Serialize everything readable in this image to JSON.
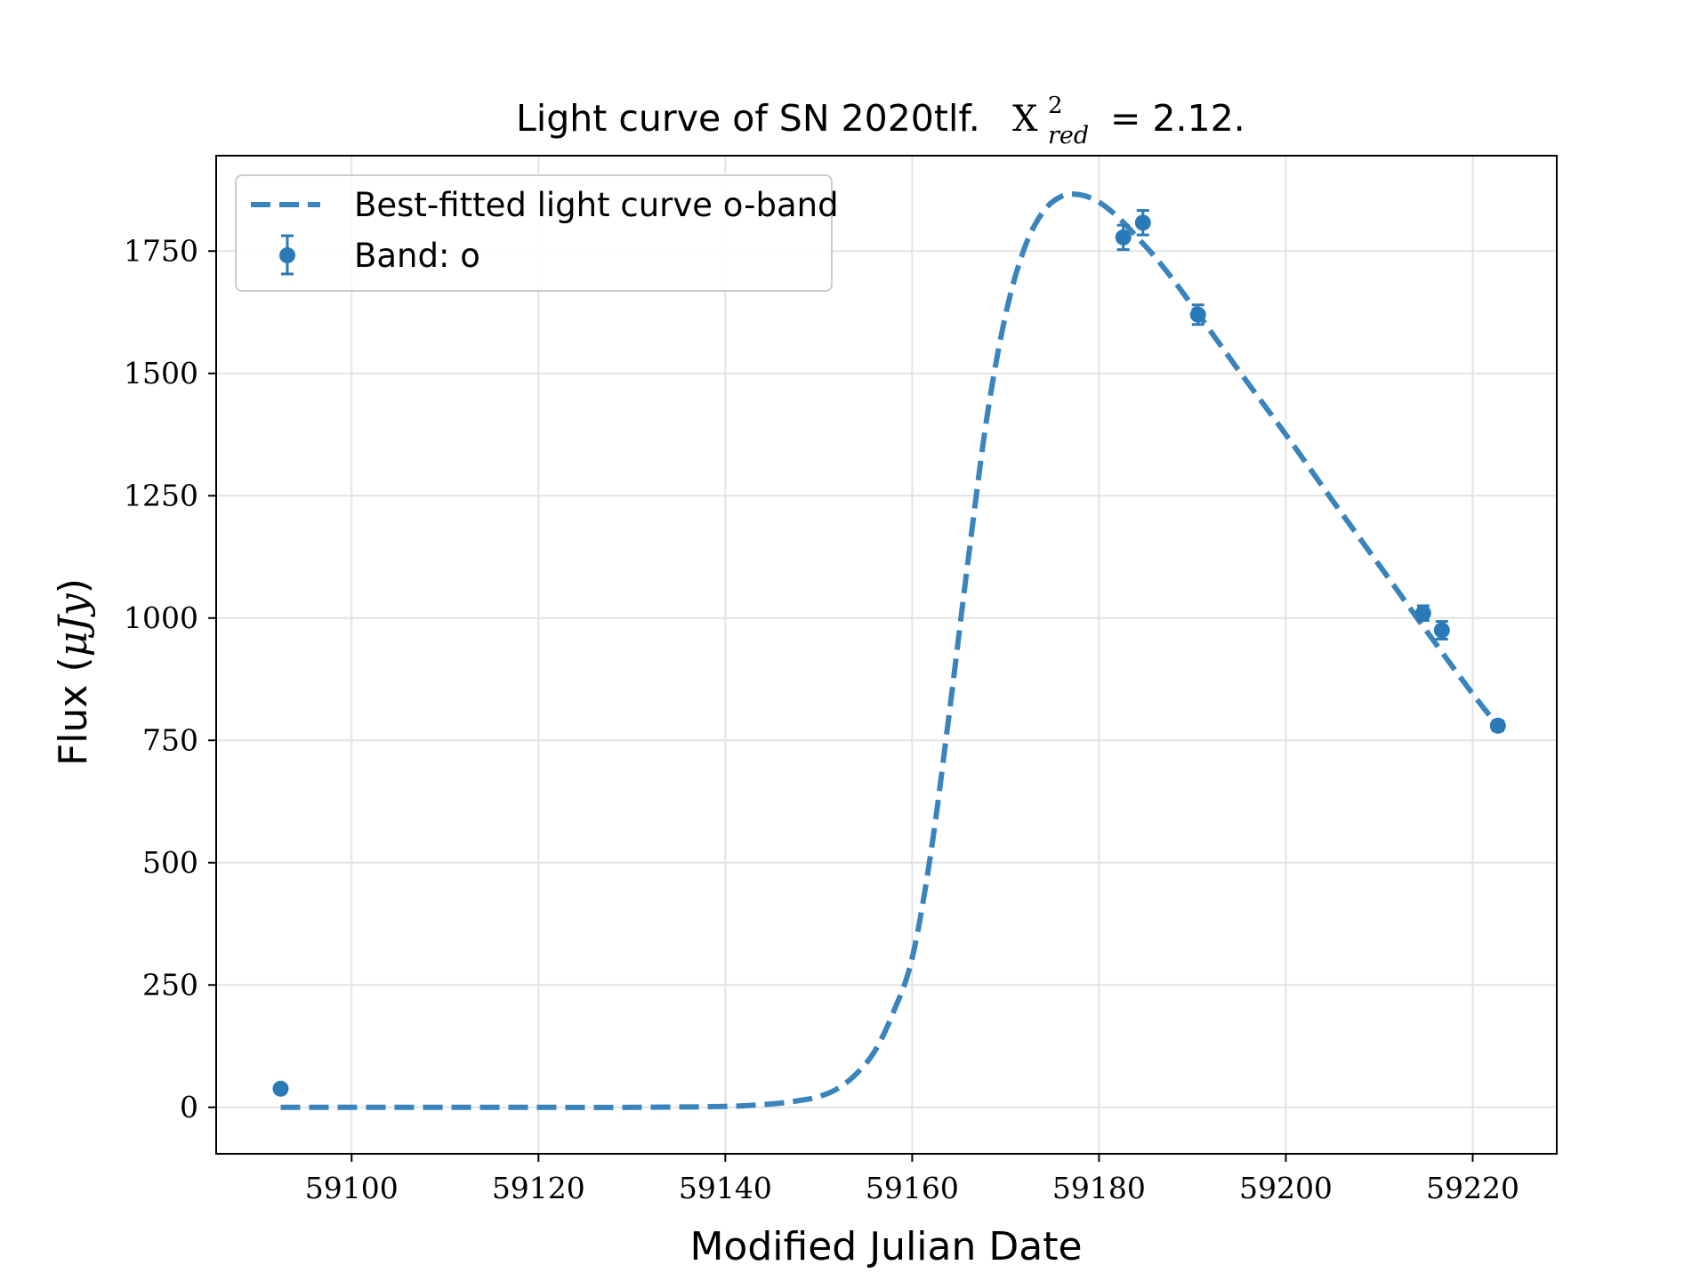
{
  "chart_data": {
    "type": "scatter",
    "title": "Light curve of SN 2020tlf.",
    "title_math": {
      "symbol": "X",
      "superscript": "2",
      "subscript": "red",
      "relation": "= 2.12."
    },
    "xlabel": "Modified Julian Date",
    "ylabel": "Flux (",
    "ylabel_math": "μJy",
    "ylabel_close": ")",
    "xlim": [
      59085.5,
      59229
    ],
    "ylim": [
      -95,
      1945
    ],
    "xticks": [
      59100,
      59120,
      59140,
      59160,
      59180,
      59200,
      59220
    ],
    "xtick_labels": [
      "59100",
      "59120",
      "59140",
      "59160",
      "59180",
      "59200",
      "59220"
    ],
    "yticks": [
      0,
      250,
      500,
      750,
      1000,
      1250,
      1500,
      1750
    ],
    "ytick_labels": [
      "0",
      "250",
      "500",
      "750",
      "1000",
      "1250",
      "1500",
      "1750"
    ],
    "grid": true,
    "legend_position": "top-left",
    "series": [
      {
        "name": "Best-fitted light curve o-band",
        "kind": "line",
        "style": "dashed",
        "color": "#3a84bd",
        "x": [
          59092.4,
          59100,
          59110,
          59120,
          59130,
          59140,
          59145,
          59148,
          59150,
          59152,
          59154,
          59156,
          59158,
          59160,
          59162,
          59164,
          59166,
          59168,
          59170,
          59172,
          59174,
          59176,
          59178,
          59180,
          59182,
          59184,
          59186,
          59188,
          59190,
          59195,
          59200,
          59205,
          59210,
          59215,
          59220,
          59222.7
        ],
        "y": [
          0,
          0,
          0,
          0,
          0,
          2,
          7,
          14,
          22,
          38,
          68,
          115,
          195,
          305,
          520,
          810,
          1120,
          1410,
          1620,
          1755,
          1830,
          1862,
          1865,
          1850,
          1820,
          1780,
          1738,
          1690,
          1638,
          1505,
          1375,
          1240,
          1108,
          975,
          845,
          780
        ]
      },
      {
        "name": "Band: o",
        "kind": "errorbar",
        "color": "#2a7ab7",
        "x": [
          59092.4,
          59182.6,
          59184.7,
          59190.6,
          59214.7,
          59216.7,
          59222.7
        ],
        "y": [
          38,
          1778,
          1808,
          1620,
          1010,
          975,
          780
        ],
        "yerr": [
          8,
          25,
          25,
          20,
          15,
          18,
          10
        ]
      }
    ]
  }
}
